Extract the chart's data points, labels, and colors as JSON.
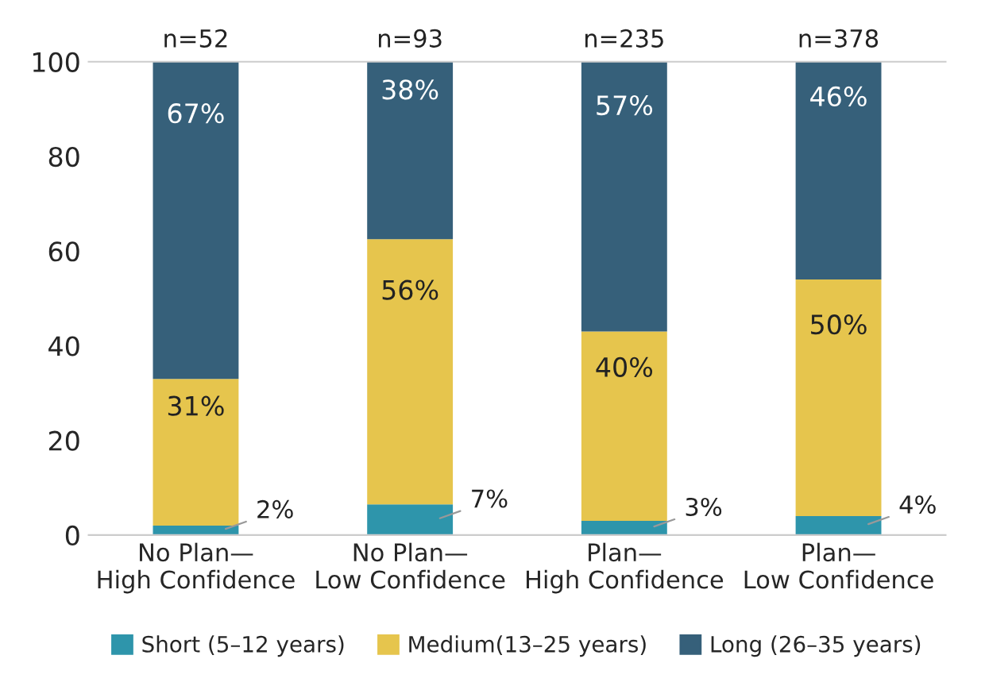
{
  "chart_data": {
    "type": "bar",
    "stacked": true,
    "categories": [
      "No Plan—\nHigh Confidence",
      "No Plan—\nLow Confidence",
      "Plan—\nHigh Confidence",
      "Plan—\nLow Confidence"
    ],
    "series": [
      {
        "name": "Short (5–12 years)",
        "color": "#2e95ab",
        "values": [
          2,
          6.5,
          3,
          4
        ],
        "value_labels": [
          "2%",
          "7%",
          "3%",
          "4%"
        ]
      },
      {
        "name": "Medium(13–25 years)",
        "color": "#e6c54d",
        "values": [
          31,
          56,
          40,
          50
        ],
        "value_labels": [
          "31%",
          "56%",
          "40%",
          "50%"
        ]
      },
      {
        "name": "Long (26–35 years)",
        "color": "#36607a",
        "values": [
          67,
          37.5,
          57,
          46
        ],
        "value_labels": [
          "67%",
          "38%",
          "57%",
          "46%"
        ]
      }
    ],
    "annotations": [
      "n=52",
      "n=93",
      "n=235",
      "n=378"
    ],
    "ylim": [
      0,
      100
    ],
    "yticks": [
      0,
      20,
      40,
      60,
      80,
      100
    ],
    "grid": false,
    "legend": "bottom"
  }
}
